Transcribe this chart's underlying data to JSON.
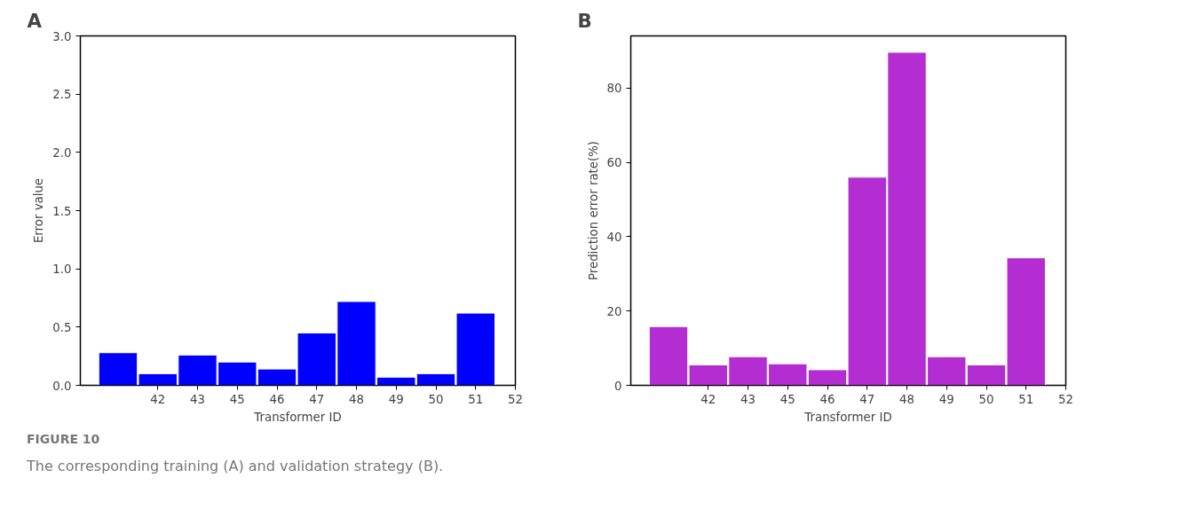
{
  "chart_data": [
    {
      "type": "bar",
      "title": "A",
      "xlabel": "Transformer ID",
      "ylabel": "Error value",
      "categories": [
        null,
        "42",
        "43",
        "45",
        "46",
        "47",
        "48",
        "49",
        "50",
        "51",
        "52"
      ],
      "values": [
        0.28,
        0.1,
        0.26,
        0.2,
        0.14,
        0.45,
        0.72,
        0.07,
        0.1,
        0.62,
        null
      ],
      "color": "#0000ff",
      "ylim": [
        0,
        3
      ],
      "yticks": [
        {
          "value": 0,
          "label": "0.0"
        },
        {
          "value": 0.5,
          "label": "0.5"
        },
        {
          "value": 1,
          "label": "1.0"
        },
        {
          "value": 1.5,
          "label": "1.5"
        },
        {
          "value": 2,
          "label": "2.0"
        },
        {
          "value": 2.5,
          "label": "2.5"
        },
        {
          "value": 3,
          "label": "3.0"
        }
      ],
      "grid": false,
      "annotations": [
        "FIGURE 10",
        "The corresponding training (A) and validation strategy (B)."
      ]
    },
    {
      "type": "bar",
      "title": "B",
      "xlabel": "Transformer ID",
      "ylabel": "Prediction error rate(%)",
      "categories": [
        null,
        "42",
        "43",
        "45",
        "46",
        "47",
        "48",
        "49",
        "50",
        "51",
        "52"
      ],
      "values": [
        15.8,
        5.5,
        7.7,
        5.8,
        4.2,
        56,
        89.6,
        7.7,
        5.5,
        34.3,
        null
      ],
      "color": "#b32dd3",
      "ylim": [
        0,
        94
      ],
      "yticks": [
        0,
        20,
        40,
        60,
        80
      ],
      "grid": false
    }
  ]
}
